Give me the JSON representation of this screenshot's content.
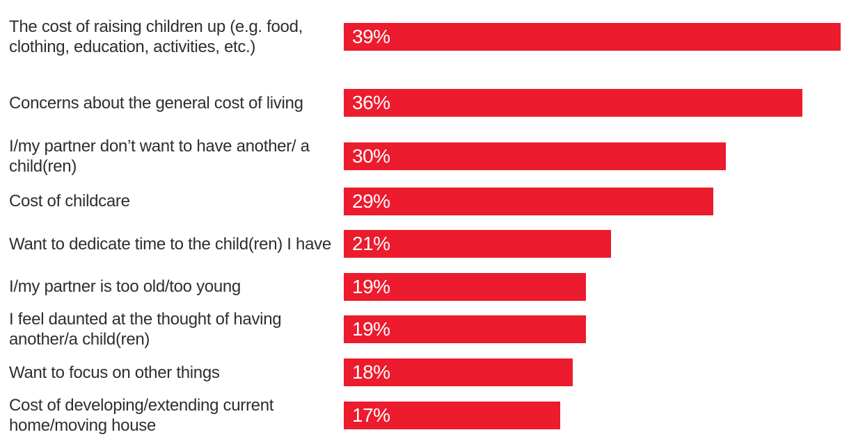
{
  "chart_data": {
    "type": "bar",
    "orientation": "horizontal",
    "grid": false,
    "legend": "none",
    "axes_visible": false,
    "xlim": [
      0,
      39.7
    ],
    "bar_color": "#EC1B2D",
    "label_color": "#2E2E2D",
    "value_label_color": "#FFFFFF",
    "background_color": "#FFFFFF",
    "categories": [
      "The cost of raising children up (e.g. food, clothing, education, activities, etc.)",
      "Concerns about the general cost of living",
      "I/my partner don’t want to have another/ a child(ren)",
      "Cost of childcare",
      "Want to dedicate time to the child(ren) I have",
      "I/my partner is too old/too young",
      "I feel daunted at the thought of having another/a child(ren)",
      "Want to focus on other things",
      "Cost of developing/extending current home/moving house"
    ],
    "values": [
      39,
      36,
      30,
      29,
      21,
      19,
      19,
      18,
      17
    ],
    "value_labels": [
      "39%",
      "36%",
      "30%",
      "29%",
      "21%",
      "19%",
      "19%",
      "18%",
      "17%"
    ]
  }
}
